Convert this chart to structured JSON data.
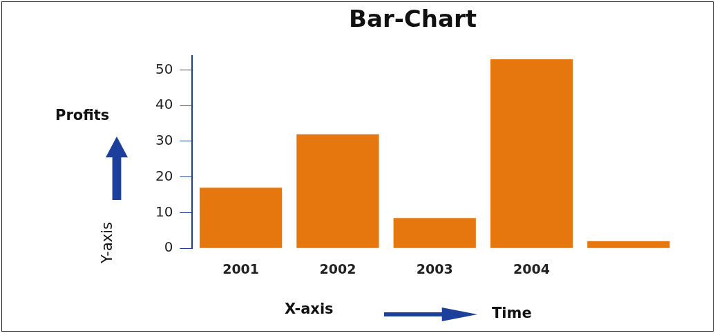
{
  "chart_data": {
    "type": "bar",
    "title": "Bar-Chart",
    "xlabel": "X-axis",
    "ylabel": "Y-axis",
    "annotations": [
      "Profits",
      "Time"
    ],
    "categories": [
      "2001",
      "2002",
      "2003",
      "2004",
      null
    ],
    "values": [
      17,
      32,
      8.5,
      53,
      2
    ],
    "color": "#e5770e",
    "ylim": [
      0,
      54
    ],
    "yticks": [
      0,
      10,
      20,
      30,
      40,
      50
    ],
    "grid": false,
    "legend": false
  }
}
